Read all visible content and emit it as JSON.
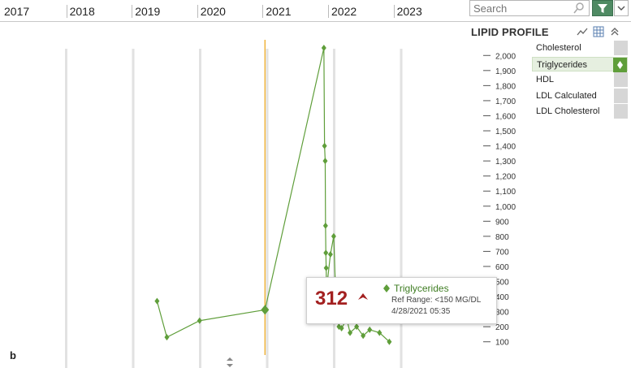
{
  "timeline": {
    "years": [
      "2017",
      "2018",
      "2019",
      "2020",
      "2021",
      "2022",
      "2023"
    ]
  },
  "search": {
    "placeholder": "Search"
  },
  "panel": {
    "title": "LIPID PROFILE",
    "items": [
      {
        "label": "Cholesterol",
        "active": false
      },
      {
        "label": "Triglycerides",
        "active": true
      },
      {
        "label": "HDL",
        "active": false
      },
      {
        "label": "LDL Calculated",
        "active": false
      },
      {
        "label": "LDL Cholesterol",
        "active": false
      }
    ]
  },
  "tooltip": {
    "value": "312",
    "series": "Triglycerides",
    "ref_range": "Ref Range: <150 MG/DL",
    "date": "4/28/2021 05:35"
  },
  "figure_label": "b",
  "colors": {
    "series": "#5f9e3a",
    "cursor": "#f0b43c",
    "value_high": "#a32020",
    "accent": "#4f8a63"
  },
  "chart_data": {
    "type": "line",
    "series": [
      {
        "name": "Triglycerides",
        "x": [
          2019.4,
          2019.55,
          2020.05,
          2021.05,
          2021.95,
          2021.96,
          2021.97,
          2021.975,
          2021.98,
          2021.985,
          2021.99,
          2022.05,
          2022.1,
          2022.13,
          2022.18,
          2022.22,
          2022.3,
          2022.35,
          2022.45,
          2022.55,
          2022.65,
          2022.8,
          2022.95
        ],
        "y": [
          370,
          130,
          240,
          312,
          2050,
          1400,
          1300,
          870,
          690,
          590,
          450,
          680,
          800,
          420,
          200,
          190,
          250,
          160,
          200,
          140,
          180,
          160,
          100
        ]
      }
    ],
    "yticks": [
      100,
      200,
      300,
      400,
      500,
      600,
      700,
      800,
      900,
      1000,
      1100,
      1200,
      1300,
      1400,
      1500,
      1600,
      1700,
      1800,
      1900,
      2000
    ],
    "ytick_labels": [
      "100",
      "200",
      "300",
      "400",
      "500",
      "600",
      "700",
      "800",
      "900",
      "1,000",
      "1,100",
      "1,200",
      "1,300",
      "1,400",
      "1,500",
      "1,600",
      "1,700",
      "1,800",
      "1,900",
      "2,000"
    ],
    "ylim": [
      50,
      2050
    ],
    "xlim": [
      2017,
      2024
    ],
    "cursor_x": 2021.05
  }
}
